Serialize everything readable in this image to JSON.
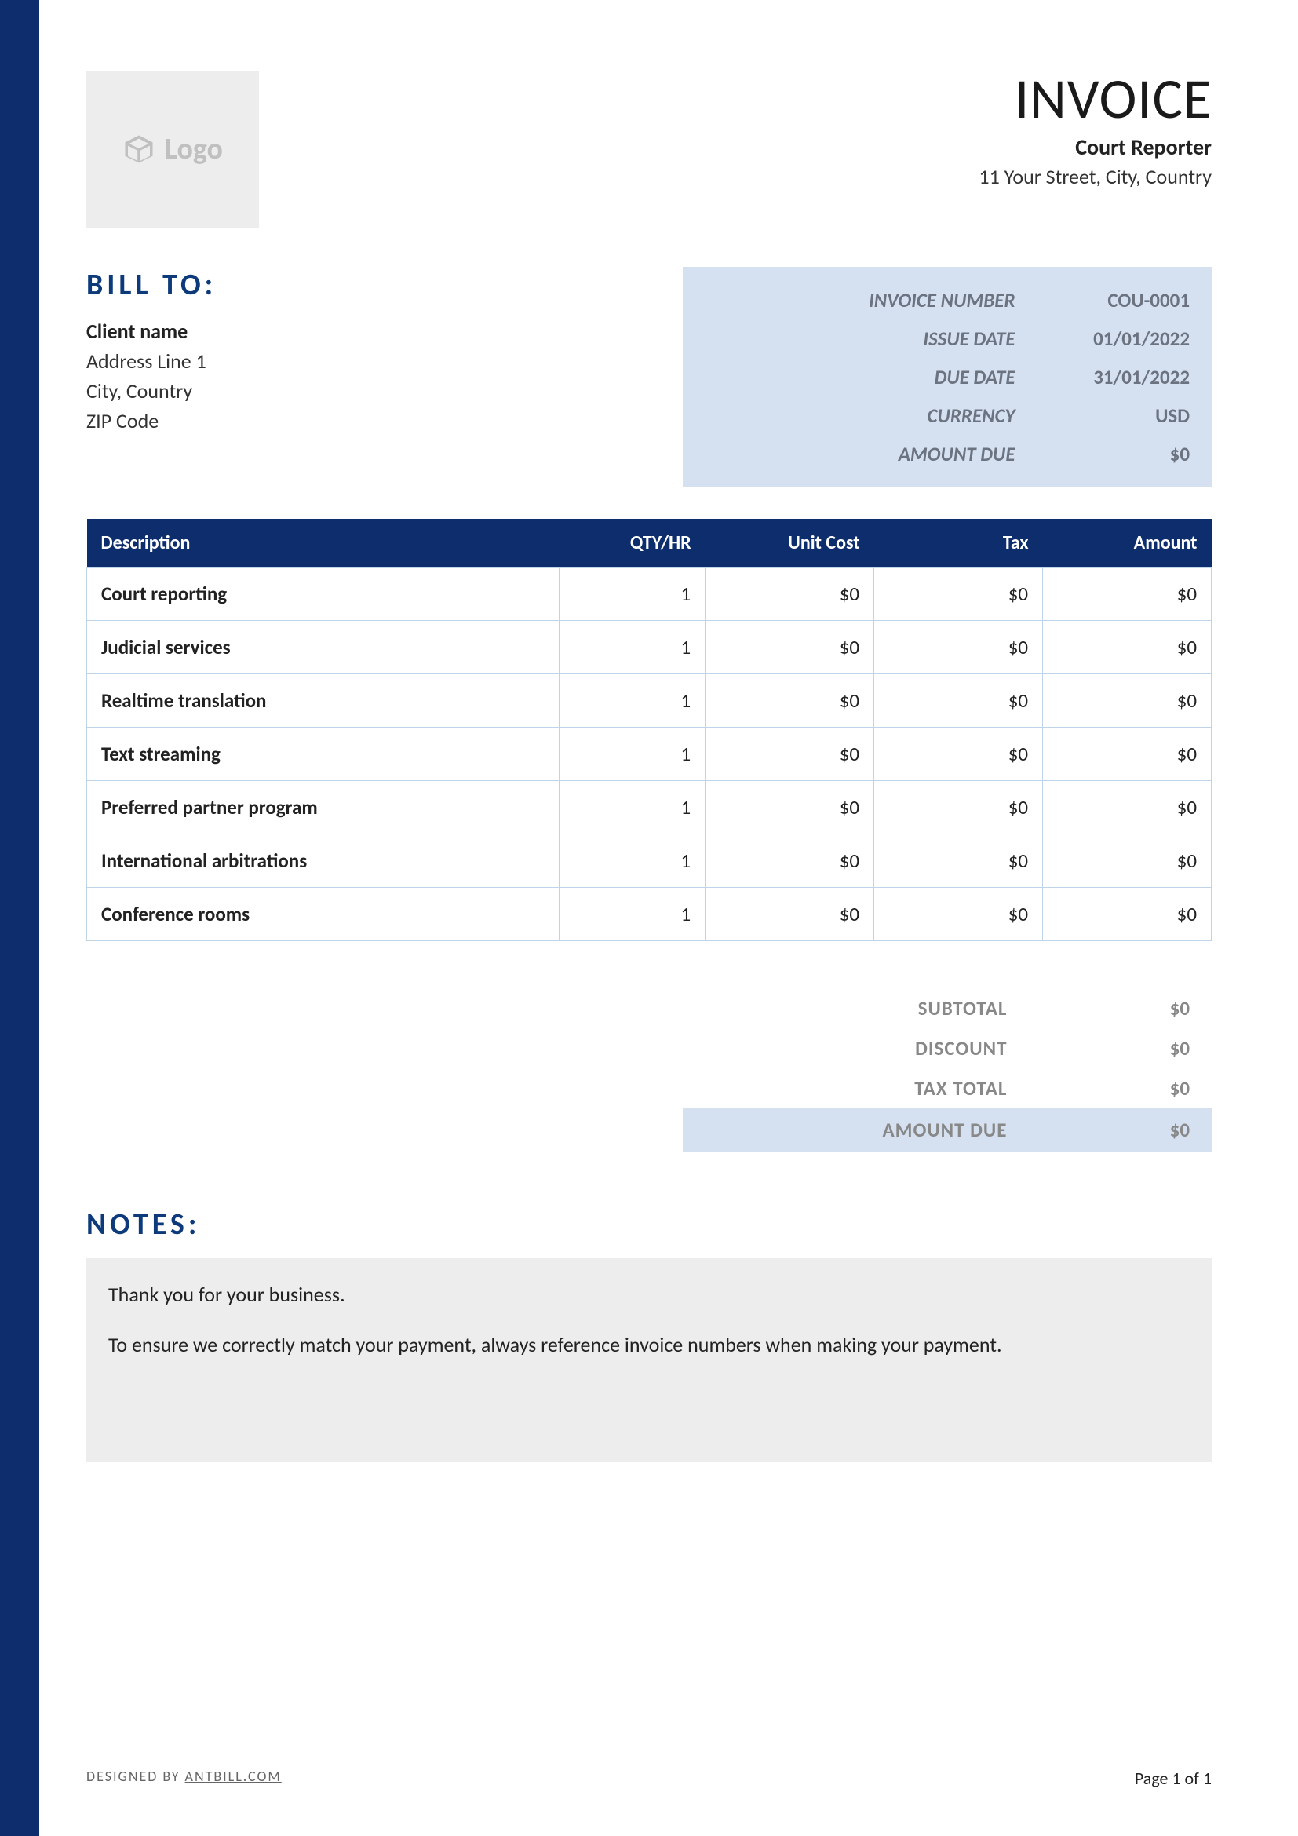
{
  "colors": {
    "accent_dark": "#0d2d6c",
    "accent_text": "#0d3a7a",
    "meta_bg": "#d5e1f0",
    "meta_text": "#6b7280",
    "border": "#bfd4e8",
    "logo_bg": "#ededed",
    "logo_text": "#c0c0c0",
    "notes_bg": "#ededed",
    "muted": "#888888"
  },
  "header": {
    "logo_text": "Logo",
    "invoice_title": "INVOICE",
    "company_name": "Court Reporter",
    "company_address": "11 Your Street, City, Country"
  },
  "bill_to": {
    "heading": "BILL TO:",
    "client_name": "Client name",
    "address_line_1": "Address Line 1",
    "city_country": "City, Country",
    "zip": "ZIP Code"
  },
  "meta": {
    "labels": {
      "invoice_number": "INVOICE NUMBER",
      "issue_date": "ISSUE DATE",
      "due_date": "DUE DATE",
      "currency": "CURRENCY",
      "amount_due": "AMOUNT DUE"
    },
    "values": {
      "invoice_number": "COU-0001",
      "issue_date": "01/01/2022",
      "due_date": "31/01/2022",
      "currency": "USD",
      "amount_due": "$0"
    }
  },
  "items_table": {
    "columns": {
      "description": "Description",
      "qty": "QTY/HR",
      "unit_cost": "Unit Cost",
      "tax": "Tax",
      "amount": "Amount"
    },
    "rows": [
      {
        "description": "Court reporting",
        "qty": "1",
        "unit_cost": "$0",
        "tax": "$0",
        "amount": "$0"
      },
      {
        "description": "Judicial services",
        "qty": "1",
        "unit_cost": "$0",
        "tax": "$0",
        "amount": "$0"
      },
      {
        "description": "Realtime translation",
        "qty": "1",
        "unit_cost": "$0",
        "tax": "$0",
        "amount": "$0"
      },
      {
        "description": "Text streaming",
        "qty": "1",
        "unit_cost": "$0",
        "tax": "$0",
        "amount": "$0"
      },
      {
        "description": "Preferred partner program",
        "qty": "1",
        "unit_cost": "$0",
        "tax": "$0",
        "amount": "$0"
      },
      {
        "description": "International arbitrations",
        "qty": "1",
        "unit_cost": "$0",
        "tax": "$0",
        "amount": "$0"
      },
      {
        "description": "Conference rooms",
        "qty": "1",
        "unit_cost": "$0",
        "tax": "$0",
        "amount": "$0"
      }
    ]
  },
  "totals": {
    "labels": {
      "subtotal": "SUBTOTAL",
      "discount": "DISCOUNT",
      "tax_total": "TAX TOTAL",
      "amount_due": "AMOUNT DUE"
    },
    "values": {
      "subtotal": "$0",
      "discount": "$0",
      "tax_total": "$0",
      "amount_due": "$0"
    }
  },
  "notes": {
    "heading": "NOTES:",
    "line1": "Thank you for your business.",
    "line2": "To ensure we correctly match your payment, always reference invoice numbers when making your payment."
  },
  "footer": {
    "designed_by_prefix": "DESIGNED BY ",
    "designed_by_link": "ANTBILL.COM",
    "page_text": "Page 1 of 1"
  }
}
